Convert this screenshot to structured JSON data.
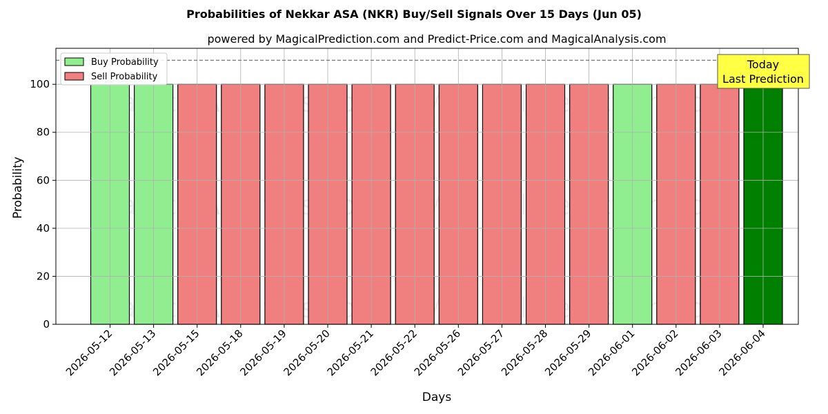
{
  "chart_data": {
    "type": "bar",
    "title": "Probabilities of Nekkar ASA (NKR) Buy/Sell Signals Over 15 Days (Jun 05)",
    "subtitle": "powered by MagicalPrediction.com and Predict-Price.com and MagicalAnalysis.com",
    "xlabel": "Days",
    "ylabel": "Probability",
    "ylim": [
      0,
      115
    ],
    "yticks": [
      0,
      20,
      40,
      60,
      80,
      100
    ],
    "reference_line": 110,
    "grid": true,
    "legend_position": "top-left",
    "categories": [
      "2026-05-12",
      "2026-05-13",
      "2026-05-15",
      "2026-05-18",
      "2026-05-19",
      "2026-05-20",
      "2026-05-21",
      "2026-05-22",
      "2026-05-26",
      "2026-05-27",
      "2026-05-28",
      "2026-05-29",
      "2026-06-01",
      "2026-06-02",
      "2026-06-03",
      "2026-06-04"
    ],
    "values": [
      100,
      100,
      100,
      100,
      100,
      100,
      100,
      100,
      100,
      100,
      100,
      100,
      100,
      100,
      100,
      100
    ],
    "signals": [
      "buy",
      "buy",
      "sell",
      "sell",
      "sell",
      "sell",
      "sell",
      "sell",
      "sell",
      "sell",
      "sell",
      "sell",
      "buy",
      "sell",
      "sell",
      "today"
    ],
    "series": [
      {
        "name": "Buy Probability",
        "color": "#90ee90"
      },
      {
        "name": "Sell Probability",
        "color": "#f08080"
      }
    ],
    "today_color": "#008000",
    "annotation": {
      "lines": [
        "Today",
        "Last Prediction"
      ],
      "background": "#ffff44"
    },
    "watermarks": [
      "MagicalAnalysis.com",
      "MagicalPrediction.com"
    ]
  }
}
